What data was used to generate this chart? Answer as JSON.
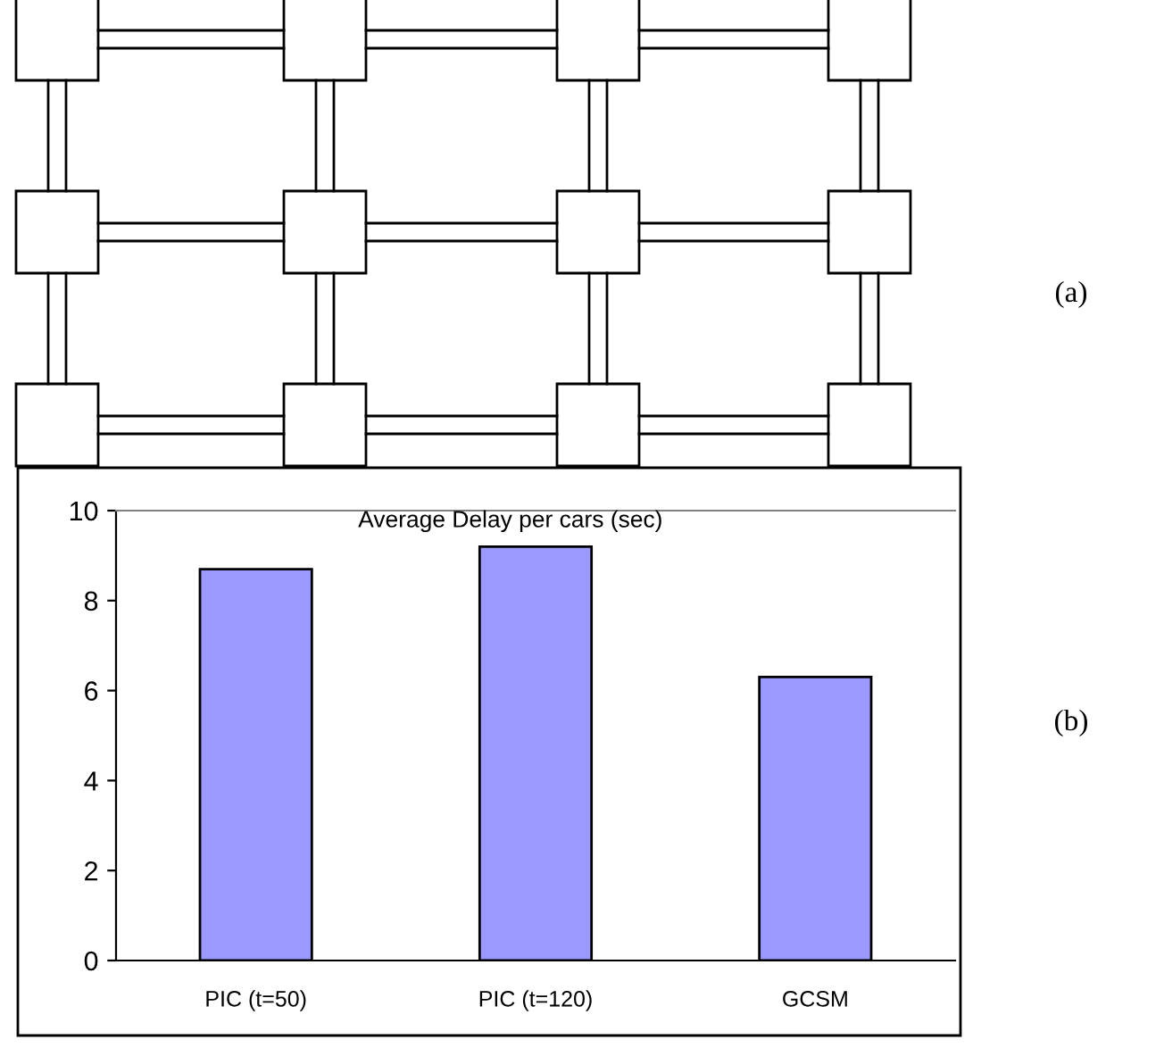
{
  "chart_data": {
    "type": "bar",
    "title": "Average Delay per cars (sec)",
    "categories": [
      "PIC (t=50)",
      "PIC (t=120)",
      "GCSM"
    ],
    "values": [
      8.7,
      9.2,
      6.3
    ],
    "color": "#9999ff",
    "ylim": [
      0,
      10
    ],
    "yticks": [
      0,
      2,
      4,
      6,
      8,
      10
    ],
    "grid": false,
    "legend": false,
    "annotations": [
      "(a)",
      "(b)"
    ]
  }
}
